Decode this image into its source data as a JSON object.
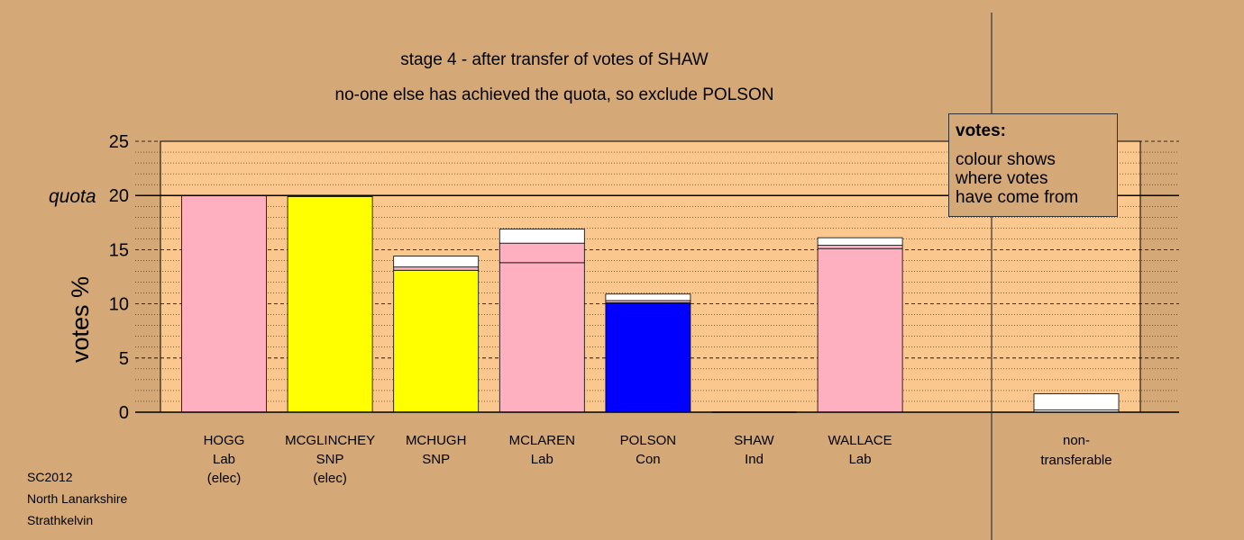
{
  "chart_data": {
    "type": "bar",
    "title": "stage 4 - after transfer of votes of SHAW",
    "subtitle": "no-one else has achieved the quota, so exclude POLSON",
    "ylabel": "votes %",
    "ylim": [
      0,
      25
    ],
    "yticks": [
      0,
      5,
      10,
      15,
      20,
      25
    ],
    "quota": {
      "label": "quota",
      "value": 20
    },
    "candidates": [
      {
        "name": "HOGG",
        "party": "Lab",
        "status": "(elec)",
        "segments": [
          {
            "value": 20.0,
            "color": "#ffb0c0"
          }
        ]
      },
      {
        "name": "MCGLINCHEY",
        "party": "SNP",
        "status": "(elec)",
        "segments": [
          {
            "value": 19.9,
            "color": "#ffff00"
          }
        ]
      },
      {
        "name": "MCHUGH",
        "party": "SNP",
        "status": "",
        "segments": [
          {
            "value": 13.1,
            "color": "#ffff00"
          },
          {
            "value": 0.3,
            "color": "#ffb0c0"
          },
          {
            "value": 1.0,
            "color": "#ffffff"
          }
        ]
      },
      {
        "name": "MCLAREN",
        "party": "Lab",
        "status": "",
        "segments": [
          {
            "value": 13.8,
            "color": "#ffb0c0"
          },
          {
            "value": 1.8,
            "color": "#ffb0c0"
          },
          {
            "value": 1.3,
            "color": "#ffffff"
          }
        ]
      },
      {
        "name": "POLSON",
        "party": "Con",
        "status": "",
        "segments": [
          {
            "value": 10.1,
            "color": "#0000ff"
          },
          {
            "value": 0.2,
            "color": "#ffb0c0"
          },
          {
            "value": 0.6,
            "color": "#ffffff"
          }
        ]
      },
      {
        "name": "SHAW",
        "party": "Ind",
        "status": "",
        "segments": []
      },
      {
        "name": "WALLACE",
        "party": "Lab",
        "status": "",
        "segments": [
          {
            "value": 15.1,
            "color": "#ffb0c0"
          },
          {
            "value": 0.3,
            "color": "#ffb0c0"
          },
          {
            "value": 0.7,
            "color": "#ffffff"
          }
        ]
      }
    ],
    "nontransferable": {
      "label_line1": "non-",
      "label_line2": "transferable",
      "segments": [
        {
          "value": 0.2,
          "color": "#ffffff"
        },
        {
          "value": 1.5,
          "color": "#ffffff"
        }
      ]
    },
    "grid": "dashed",
    "legend_position": "top-right"
  },
  "legend": {
    "title": "votes:",
    "lines": [
      "colour shows",
      "where votes",
      "have come from"
    ]
  },
  "footer": [
    "SC2012",
    "North Lanarkshire",
    "Strathkelvin"
  ]
}
